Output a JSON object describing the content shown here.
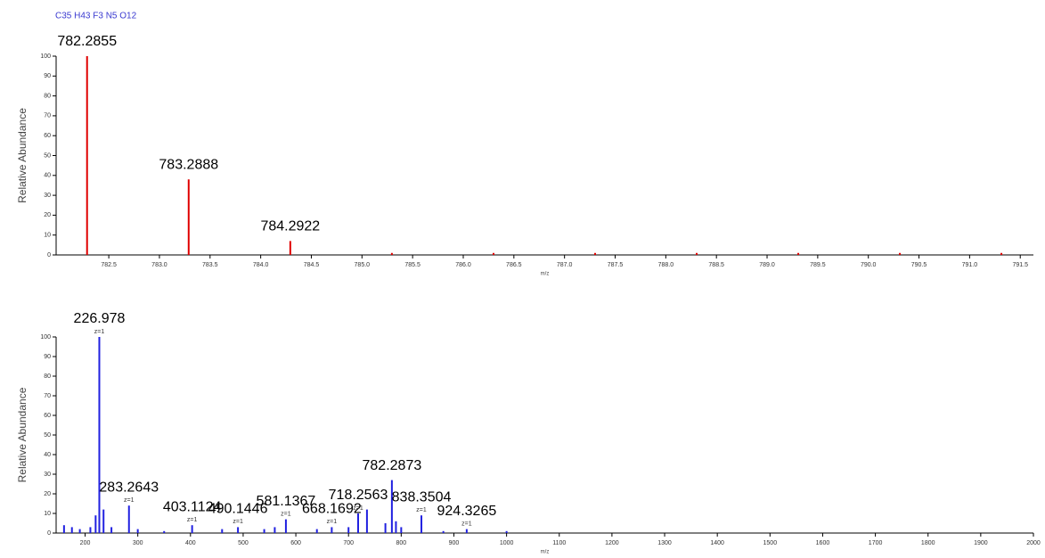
{
  "chart_data": [
    {
      "type": "stick",
      "title": "C35 H43 F3 N5 O12",
      "color": "#e00000",
      "x_label": "m/z",
      "y_label": "Relative Abundance",
      "x": [
        782.2855,
        783.2888,
        784.2922
      ],
      "values": [
        100,
        38,
        7
      ],
      "minor_x": [
        785.2955,
        786.299,
        787.302,
        788.305,
        789.308,
        790.311,
        791.314
      ],
      "minor_values": [
        1,
        1,
        1,
        1,
        1,
        1,
        1
      ],
      "xlim": [
        781.98,
        791.63
      ],
      "ylim": [
        0,
        100
      ],
      "xticks": [
        782.5,
        {
          "value": 783,
          "label": "783.0"
        },
        783.5,
        {
          "value": 784,
          "label": "784.0"
        },
        784.5,
        {
          "value": 785,
          "label": "785.0"
        },
        785.5,
        {
          "value": 786,
          "label": "786.0"
        },
        786.5,
        {
          "value": 787,
          "label": "787.0"
        },
        787.5,
        {
          "value": 788,
          "label": "788.0"
        },
        788.5,
        {
          "value": 789,
          "label": "789.0"
        },
        789.5,
        {
          "value": 790,
          "label": "790.0"
        },
        790.5,
        {
          "value": 791,
          "label": "791.0"
        },
        791.5
      ],
      "yticks": [
        0,
        10,
        20,
        30,
        40,
        50,
        60,
        70,
        80,
        90,
        100
      ]
    },
    {
      "type": "stick",
      "color": "#2020e0",
      "x_label": "m/z",
      "y_label": "Relative Abundance",
      "x": [
        226.978,
        283.2643,
        403.1124,
        490.1446,
        581.1367,
        668.1692,
        718.2563,
        782.2873,
        838.3504,
        924.3265
      ],
      "values": [
        100,
        14,
        4,
        3,
        7,
        3,
        10,
        27,
        9,
        2
      ],
      "charges": [
        "z=1",
        "z=1",
        "z=1",
        "z=1",
        "z=1",
        "z=1",
        "z=1",
        null,
        "z=1",
        "z=1"
      ],
      "minor_x": [
        160,
        175,
        190,
        210,
        220,
        235,
        250,
        300,
        350,
        460,
        540,
        560,
        640,
        700,
        735,
        770,
        790,
        800,
        880,
        1000
      ],
      "minor_values": [
        4,
        3,
        2,
        3,
        9,
        12,
        3,
        2,
        1,
        2,
        2,
        3,
        2,
        3,
        12,
        5,
        6,
        3,
        1,
        1
      ],
      "xlim": [
        145,
        2000
      ],
      "ylim": [
        0,
        100
      ],
      "xticks": [
        200,
        300,
        400,
        500,
        600,
        700,
        800,
        900,
        1000,
        1100,
        1200,
        1300,
        1400,
        1500,
        1600,
        1700,
        1800,
        1900,
        2000
      ],
      "yticks": [
        0,
        10,
        20,
        30,
        40,
        50,
        60,
        70,
        80,
        90,
        100
      ]
    }
  ]
}
